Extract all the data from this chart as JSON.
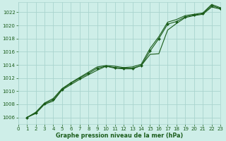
{
  "title": "",
  "xlabel": "Graphe pression niveau de la mer (hPa)",
  "bg_color": "#ceeee8",
  "grid_color": "#aad4ce",
  "line_color": "#1a5c1a",
  "marker_color": "#1a5c1a",
  "xlim": [
    0,
    23
  ],
  "ylim": [
    1005.0,
    1023.5
  ],
  "yticks": [
    1006,
    1008,
    1010,
    1012,
    1014,
    1016,
    1018,
    1020,
    1022
  ],
  "xticks": [
    0,
    1,
    2,
    3,
    4,
    5,
    6,
    7,
    8,
    9,
    10,
    11,
    12,
    13,
    14,
    15,
    16,
    17,
    18,
    19,
    20,
    21,
    22,
    23
  ],
  "series": [
    {
      "x": [
        1,
        2,
        3,
        4,
        5,
        6,
        7,
        8,
        9,
        10,
        11,
        12,
        13,
        14,
        15,
        16,
        17,
        18,
        19,
        20,
        21,
        22,
        23
      ],
      "y": [
        1006.0,
        1006.8,
        1008.2,
        1008.9,
        1010.4,
        1011.3,
        1012.1,
        1012.9,
        1013.7,
        1013.9,
        1013.8,
        1013.6,
        1013.7,
        1014.1,
        1016.5,
        1018.3,
        1020.5,
        1020.9,
        1021.5,
        1021.7,
        1021.9,
        1023.2,
        1022.7
      ]
    },
    {
      "x": [
        1,
        2,
        3,
        4,
        5,
        6,
        7,
        8,
        9,
        10,
        11,
        12,
        13,
        14,
        15,
        16,
        17,
        18,
        19,
        20,
        21,
        22,
        23
      ],
      "y": [
        1006.0,
        1006.7,
        1008.1,
        1008.7,
        1010.3,
        1011.2,
        1012.0,
        1012.7,
        1013.5,
        1013.8,
        1013.6,
        1013.5,
        1013.5,
        1013.9,
        1016.1,
        1018.0,
        1020.2,
        1020.6,
        1021.3,
        1021.6,
        1021.8,
        1023.0,
        1022.6
      ]
    },
    {
      "x": [
        1,
        2,
        3,
        4,
        5,
        6,
        7,
        8,
        9,
        10,
        11,
        12,
        13,
        14,
        15,
        16,
        17,
        18,
        19,
        20,
        21,
        22,
        23
      ],
      "y": [
        1006.0,
        1006.6,
        1008.0,
        1008.5,
        1010.2,
        1011.0,
        1011.8,
        1012.5,
        1013.2,
        1013.8,
        1013.5,
        1013.4,
        1013.4,
        1013.9,
        1015.6,
        1015.7,
        1019.3,
        1020.3,
        1021.2,
        1021.5,
        1021.7,
        1022.8,
        1022.5
      ]
    }
  ]
}
